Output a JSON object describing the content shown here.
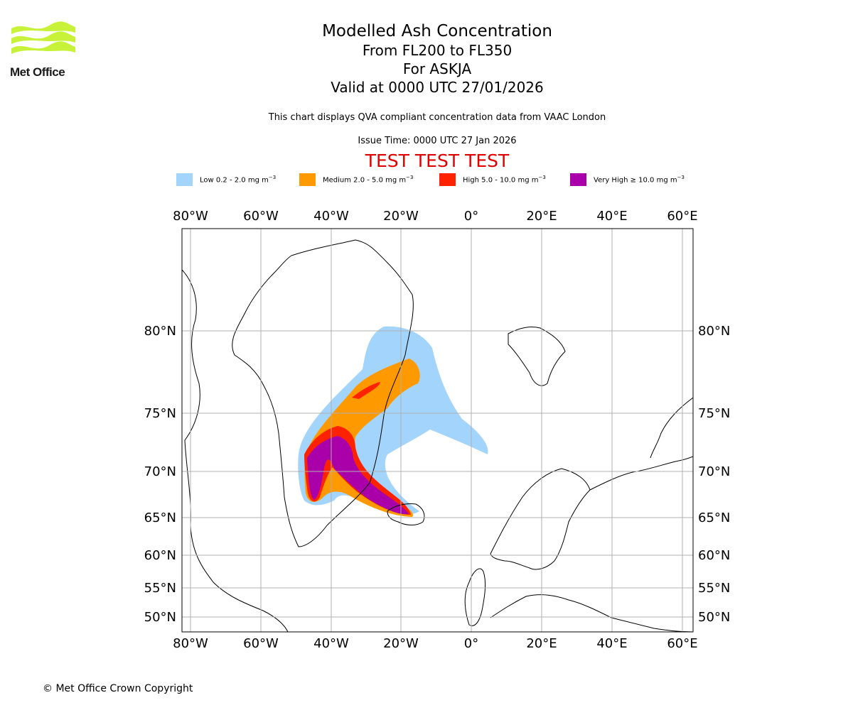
{
  "logo": {
    "text": "Met Office",
    "color": "#c8f23a"
  },
  "title": {
    "line1": "Modelled Ash Concentration",
    "line2": "From FL200 to FL350",
    "line3": "For ASKJA",
    "line4": "Valid at 0000 UTC 27/01/2026"
  },
  "subtitle": "This chart displays QVA compliant concentration data from VAAC London",
  "issue_time": "Issue Time: 0000 UTC 27 Jan 2026",
  "test_banner": "TEST TEST TEST",
  "legend": [
    {
      "label": "Low 0.2 - 2.0 mg m",
      "color": "#a3d4fb"
    },
    {
      "label": "Medium 2.0 - 5.0 mg m",
      "color": "#ff9900"
    },
    {
      "label": "High 5.0 - 10.0 mg m",
      "color": "#ff2200"
    },
    {
      "label": "Very High ≥ 10.0 mg m",
      "color": "#aa00aa"
    }
  ],
  "legend_unit_exp": "−3",
  "axes": {
    "longitudes": [
      "80°W",
      "60°W",
      "40°W",
      "20°W",
      "0°",
      "20°E",
      "40°E",
      "60°E"
    ],
    "latitudes": [
      "80°N",
      "75°N",
      "70°N",
      "65°N",
      "60°N",
      "55°N",
      "50°N"
    ]
  },
  "copyright": "© Met Office Crown Copyright"
}
